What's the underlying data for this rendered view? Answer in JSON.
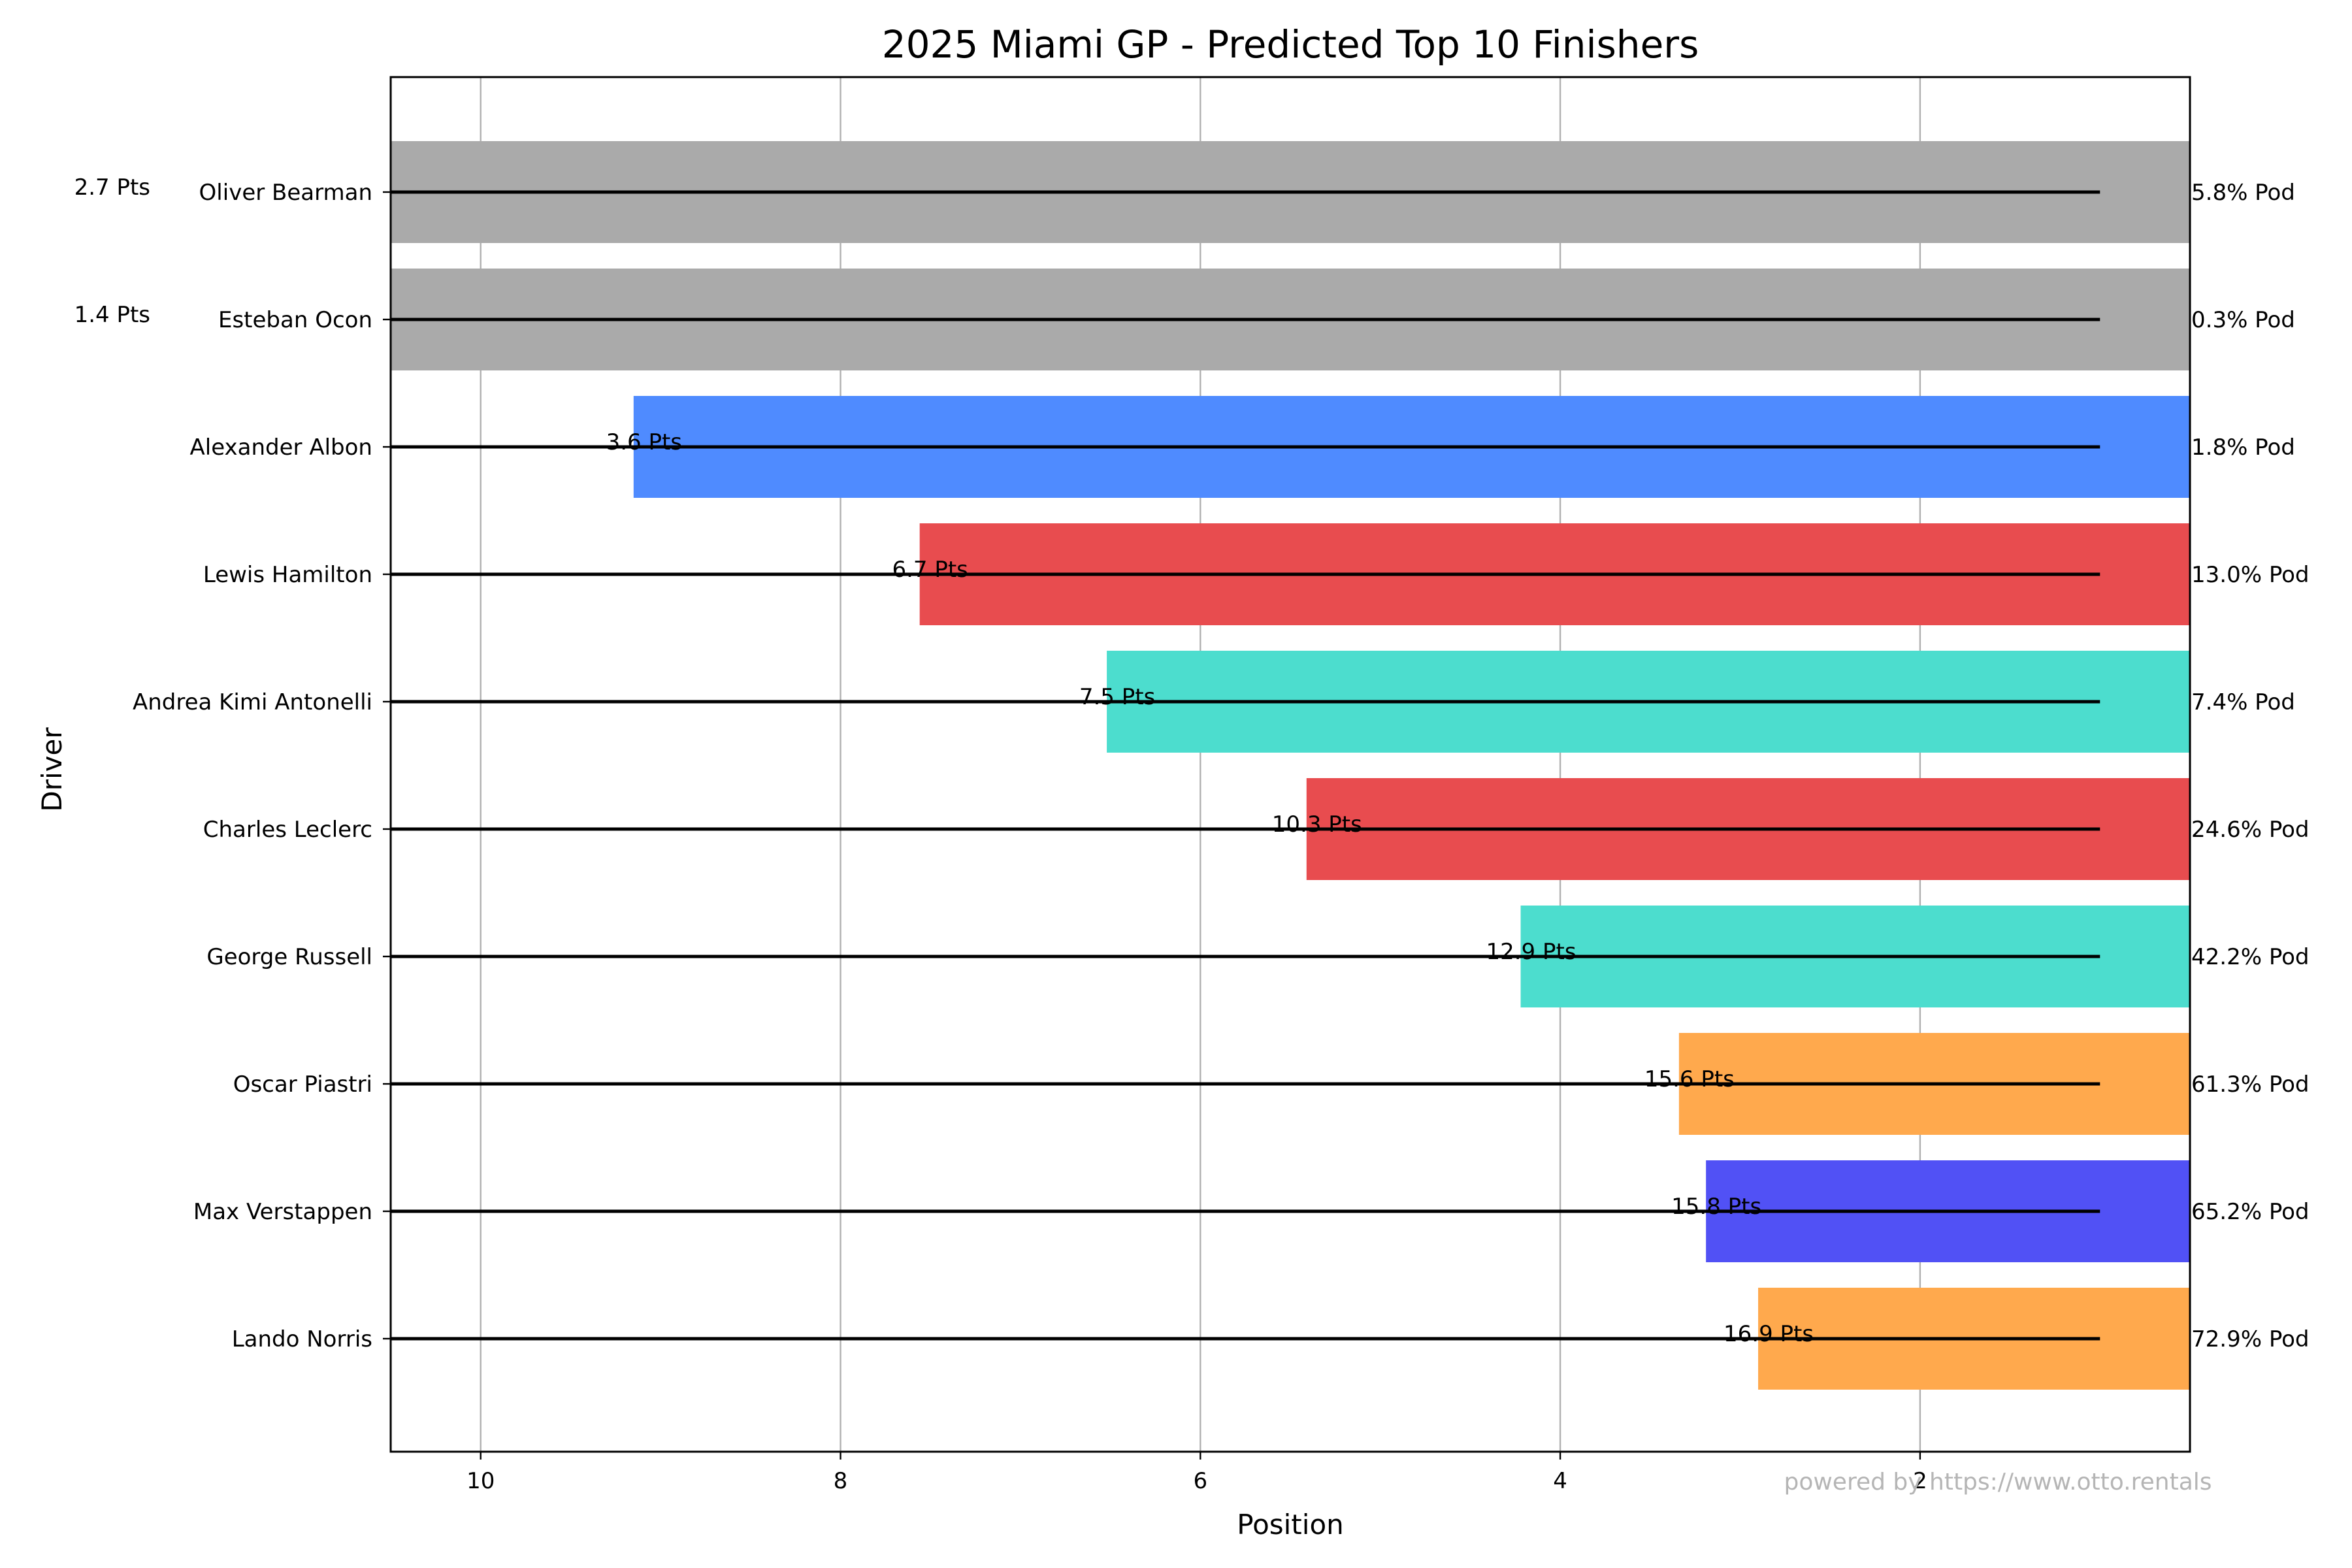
{
  "chart_data": {
    "type": "bar",
    "title": "2025 Miami GP - Predicted Top 10 Finishers",
    "xlabel": "Position",
    "ylabel": "Driver",
    "xlim": [
      10.5,
      0.5
    ],
    "xaxis_inverted": true,
    "xticks": [
      10,
      8,
      6,
      4,
      2
    ],
    "grid": "vertical",
    "bar_base_position": 0.5,
    "marker_line_end_position": 1.0,
    "categories": [
      "Oliver Bearman",
      "Esteban Ocon",
      "Alexander Albon",
      "Lewis Hamilton",
      "Andrea Kimi Antonelli",
      "Charles Leclerc",
      "George Russell",
      "Oscar Piastri",
      "Max Verstappen",
      "Lando Norris"
    ],
    "series": [
      {
        "values": [
          10.6,
          10.6,
          9.15,
          7.56,
          6.52,
          5.41,
          4.22,
          3.34,
          3.19,
          2.9
        ],
        "points_labels": [
          "2.7 Pts",
          "1.4 Pts",
          "3.6 Pts",
          "6.7 Pts",
          "7.5 Pts",
          "10.3 Pts",
          "12.9 Pts",
          "15.6 Pts",
          "15.8 Pts",
          "16.9 Pts"
        ],
        "podium_labels": [
          "5.8% Pod",
          "0.3% Pod",
          "1.8% Pod",
          "13.0% Pod",
          "7.4% Pod",
          "24.6% Pod",
          "42.2% Pod",
          "61.3% Pod",
          "65.2% Pod",
          "72.9% Pod"
        ],
        "colors": [
          "#aaaaaa",
          "#aaaaaa",
          "#4f8bff",
          "#e84c4f",
          "#4cddce",
          "#e84c4f",
          "#4cddce",
          "#ffa94d",
          "#5151f5",
          "#ffa94d"
        ]
      }
    ],
    "watermark": "powered by https://www.otto.rentals"
  }
}
